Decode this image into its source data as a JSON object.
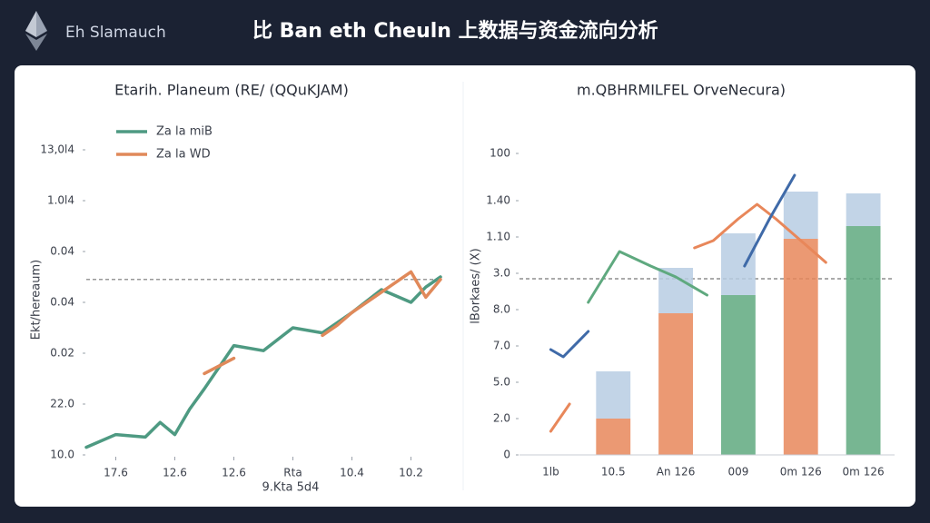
{
  "header": {
    "brand": "Eh Slamauch",
    "title": "比 Ban eth Cheuln 上数据与资金流向分析"
  },
  "chart_data": [
    {
      "type": "line",
      "title": "Etarih. Planeum (RE/ (QQuKJAM)",
      "y_label": "Ekt/hereaum)",
      "x_label": "9.Kta 5d4",
      "x": [
        0,
        1,
        2,
        2.5,
        3,
        3.5,
        4,
        5,
        6,
        7,
        8,
        8.5,
        9,
        10,
        11,
        11.5,
        12
      ],
      "series": [
        {
          "name": "Za la miB",
          "color": "#4e9a82",
          "values": [
            0.15,
            0.4,
            0.35,
            0.64,
            0.4,
            0.9,
            1.3,
            2.15,
            2.05,
            2.5,
            2.4,
            2.6,
            2.8,
            3.25,
            3.0,
            3.3,
            3.5
          ]
        },
        {
          "name": "Za la WD",
          "color": "#e0895a",
          "values": [
            null,
            null,
            null,
            null,
            null,
            null,
            1.6,
            1.9,
            null,
            null,
            2.35,
            2.55,
            2.8,
            3.2,
            3.6,
            3.1,
            3.45
          ]
        }
      ],
      "xlim": [
        0,
        12
      ],
      "xticks": [
        {
          "value": 1,
          "label": "17.6"
        },
        {
          "value": 3,
          "label": "12.6"
        },
        {
          "value": 5,
          "label": "12.6"
        },
        {
          "value": 7,
          "label": "Rta"
        },
        {
          "value": 9,
          "label": "10.4"
        },
        {
          "value": 11,
          "label": "10.2"
        }
      ],
      "ylim": [
        0,
        6
      ],
      "yticks": [
        {
          "value": 0,
          "label": "10.0"
        },
        {
          "value": 1,
          "label": "22.0"
        },
        {
          "value": 2,
          "label": "0.02"
        },
        {
          "value": 3,
          "label": "0.04"
        },
        {
          "value": 4,
          "label": "0.04"
        },
        {
          "value": 5,
          "label": "1.0l4"
        },
        {
          "value": 6,
          "label": "13,0l4"
        }
      ],
      "reference_line": 3.45,
      "legend": "upper left"
    },
    {
      "type": "bar",
      "stacked": true,
      "title": "m.QBHRMILFEL OrveNecura)",
      "y_label": "lBorkaes/ (X)",
      "categories": [
        "1lb",
        "10.5",
        "An 126",
        "009",
        "0m 126",
        "0m 126"
      ],
      "series": [
        {
          "color": "#5fa97f",
          "values": [
            0,
            0,
            0,
            4.4,
            0,
            6.3
          ]
        },
        {
          "color": "#e8875a",
          "values": [
            0,
            1.0,
            3.9,
            0,
            5.95,
            0
          ]
        },
        {
          "color": "#b7cce3",
          "values": [
            0,
            1.3,
            1.25,
            1.7,
            1.3,
            0.9
          ]
        }
      ],
      "lines": [
        {
          "color": "#e8875a",
          "x": [
            0.0,
            0.3,
            0.5,
            2.3,
            2.6,
            3.0,
            3.3,
            3.6,
            4.0,
            4.4
          ],
          "values": [
            0.65,
            1.4,
            null,
            5.7,
            5.9,
            6.5,
            6.9,
            6.5,
            5.9,
            5.3
          ]
        },
        {
          "color": "#5fa97f",
          "x": [
            0.6,
            1.1,
            1.6,
            2.0,
            2.5
          ],
          "values": [
            4.2,
            5.6,
            5.2,
            4.9,
            4.4
          ]
        },
        {
          "color": "#3f6aa8",
          "x": [
            0.0,
            0.2,
            0.6,
            0.8,
            3.1,
            3.5,
            3.9
          ],
          "values": [
            2.9,
            2.7,
            3.4,
            null,
            5.2,
            6.5,
            7.7
          ]
        }
      ],
      "ylim": [
        0,
        8.5
      ],
      "yticks": [
        0,
        {
          "value": 1,
          "label": "2.0"
        },
        {
          "value": 2,
          "label": "5.0"
        },
        {
          "value": 3,
          "label": "7.0"
        },
        {
          "value": 4,
          "label": "8.0"
        },
        {
          "value": 5,
          "label": "3.0"
        },
        {
          "value": 6,
          "label": "1.10"
        },
        {
          "value": 7,
          "label": "1.40"
        },
        {
          "value": 8.3,
          "label": "100"
        }
      ],
      "reference_line": 4.85,
      "legend": false
    }
  ]
}
